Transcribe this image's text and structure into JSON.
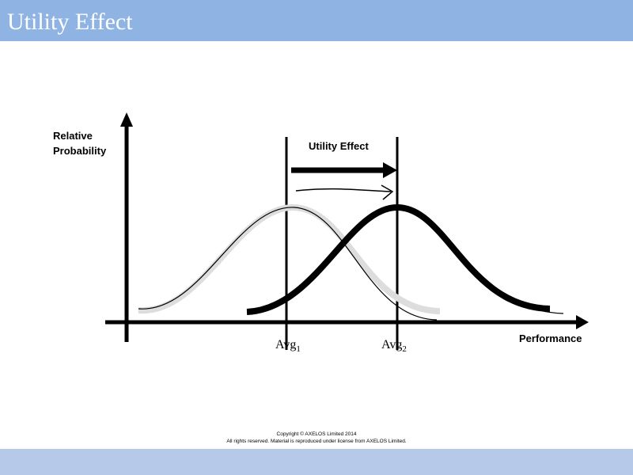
{
  "header": {
    "title": "Utility Effect"
  },
  "diagram": {
    "y_axis_label": [
      "Relative",
      "Probability"
    ],
    "x_axis_label": "Performance",
    "shift_label": "Utility Effect",
    "avg1": {
      "label": "Avg",
      "subscript": "1"
    },
    "avg2": {
      "label": "Avg",
      "subscript": "2"
    }
  },
  "footer": {
    "lines": [
      "Copyright © AXELOS Limited 2014",
      "All rights reserved. Material is reproduced under license from AXELOS Limited."
    ]
  }
}
